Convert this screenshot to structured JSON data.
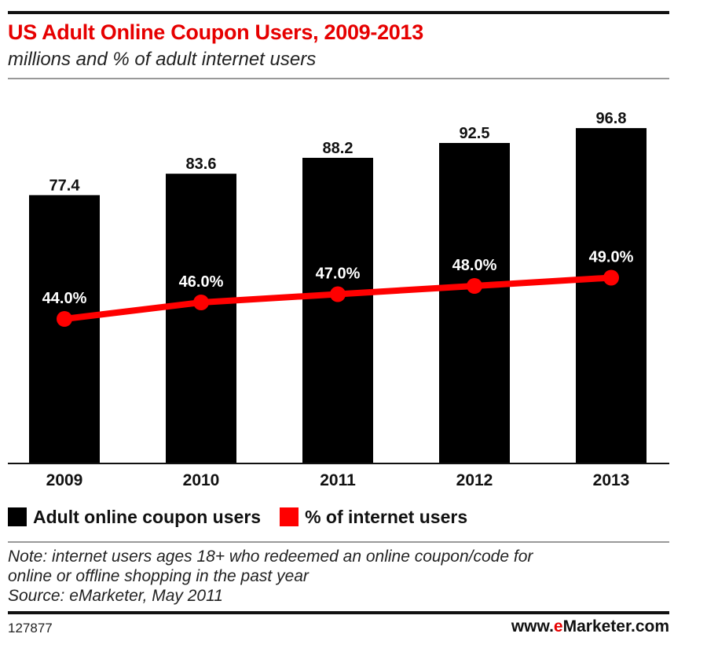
{
  "title": "US Adult Online Coupon Users, 2009-2013",
  "subtitle": "millions and % of adult internet users",
  "chart_data": {
    "type": "bar",
    "categories": [
      "2009",
      "2010",
      "2011",
      "2012",
      "2013"
    ],
    "series": [
      {
        "name": "Adult online coupon users",
        "type": "bar",
        "values": [
          77.4,
          83.6,
          88.2,
          92.5,
          96.8
        ],
        "labels": [
          "77.4",
          "83.6",
          "88.2",
          "92.5",
          "96.8"
        ],
        "color": "#000000"
      },
      {
        "name": "% of internet users",
        "type": "line",
        "values": [
          44.0,
          46.0,
          47.0,
          48.0,
          49.0
        ],
        "labels": [
          "44.0%",
          "46.0%",
          "47.0%",
          "48.0%",
          "49.0%"
        ],
        "color": "#ff0000"
      }
    ],
    "title": "US Adult Online Coupon Users, 2009-2013",
    "subtitle": "millions and % of adult internet users",
    "legend_position": "bottom-left",
    "grid": false
  },
  "legend": {
    "items": [
      {
        "label": "Adult online coupon users",
        "color": "#000000"
      },
      {
        "label": "% of internet users",
        "color": "#ff0000"
      }
    ]
  },
  "notes": {
    "line1": "Note: internet users ages 18+ who redeemed an online coupon/code for",
    "line2": "online or offline shopping in the past year",
    "line3": "Source: eMarketer, May 2011"
  },
  "footer": {
    "id": "127877",
    "brand_prefix": "www.",
    "brand_accent": "e",
    "brand_rest": "Marketer.com"
  },
  "colors": {
    "title": "#e60000",
    "bar": "#000000",
    "line": "#ff0000"
  }
}
